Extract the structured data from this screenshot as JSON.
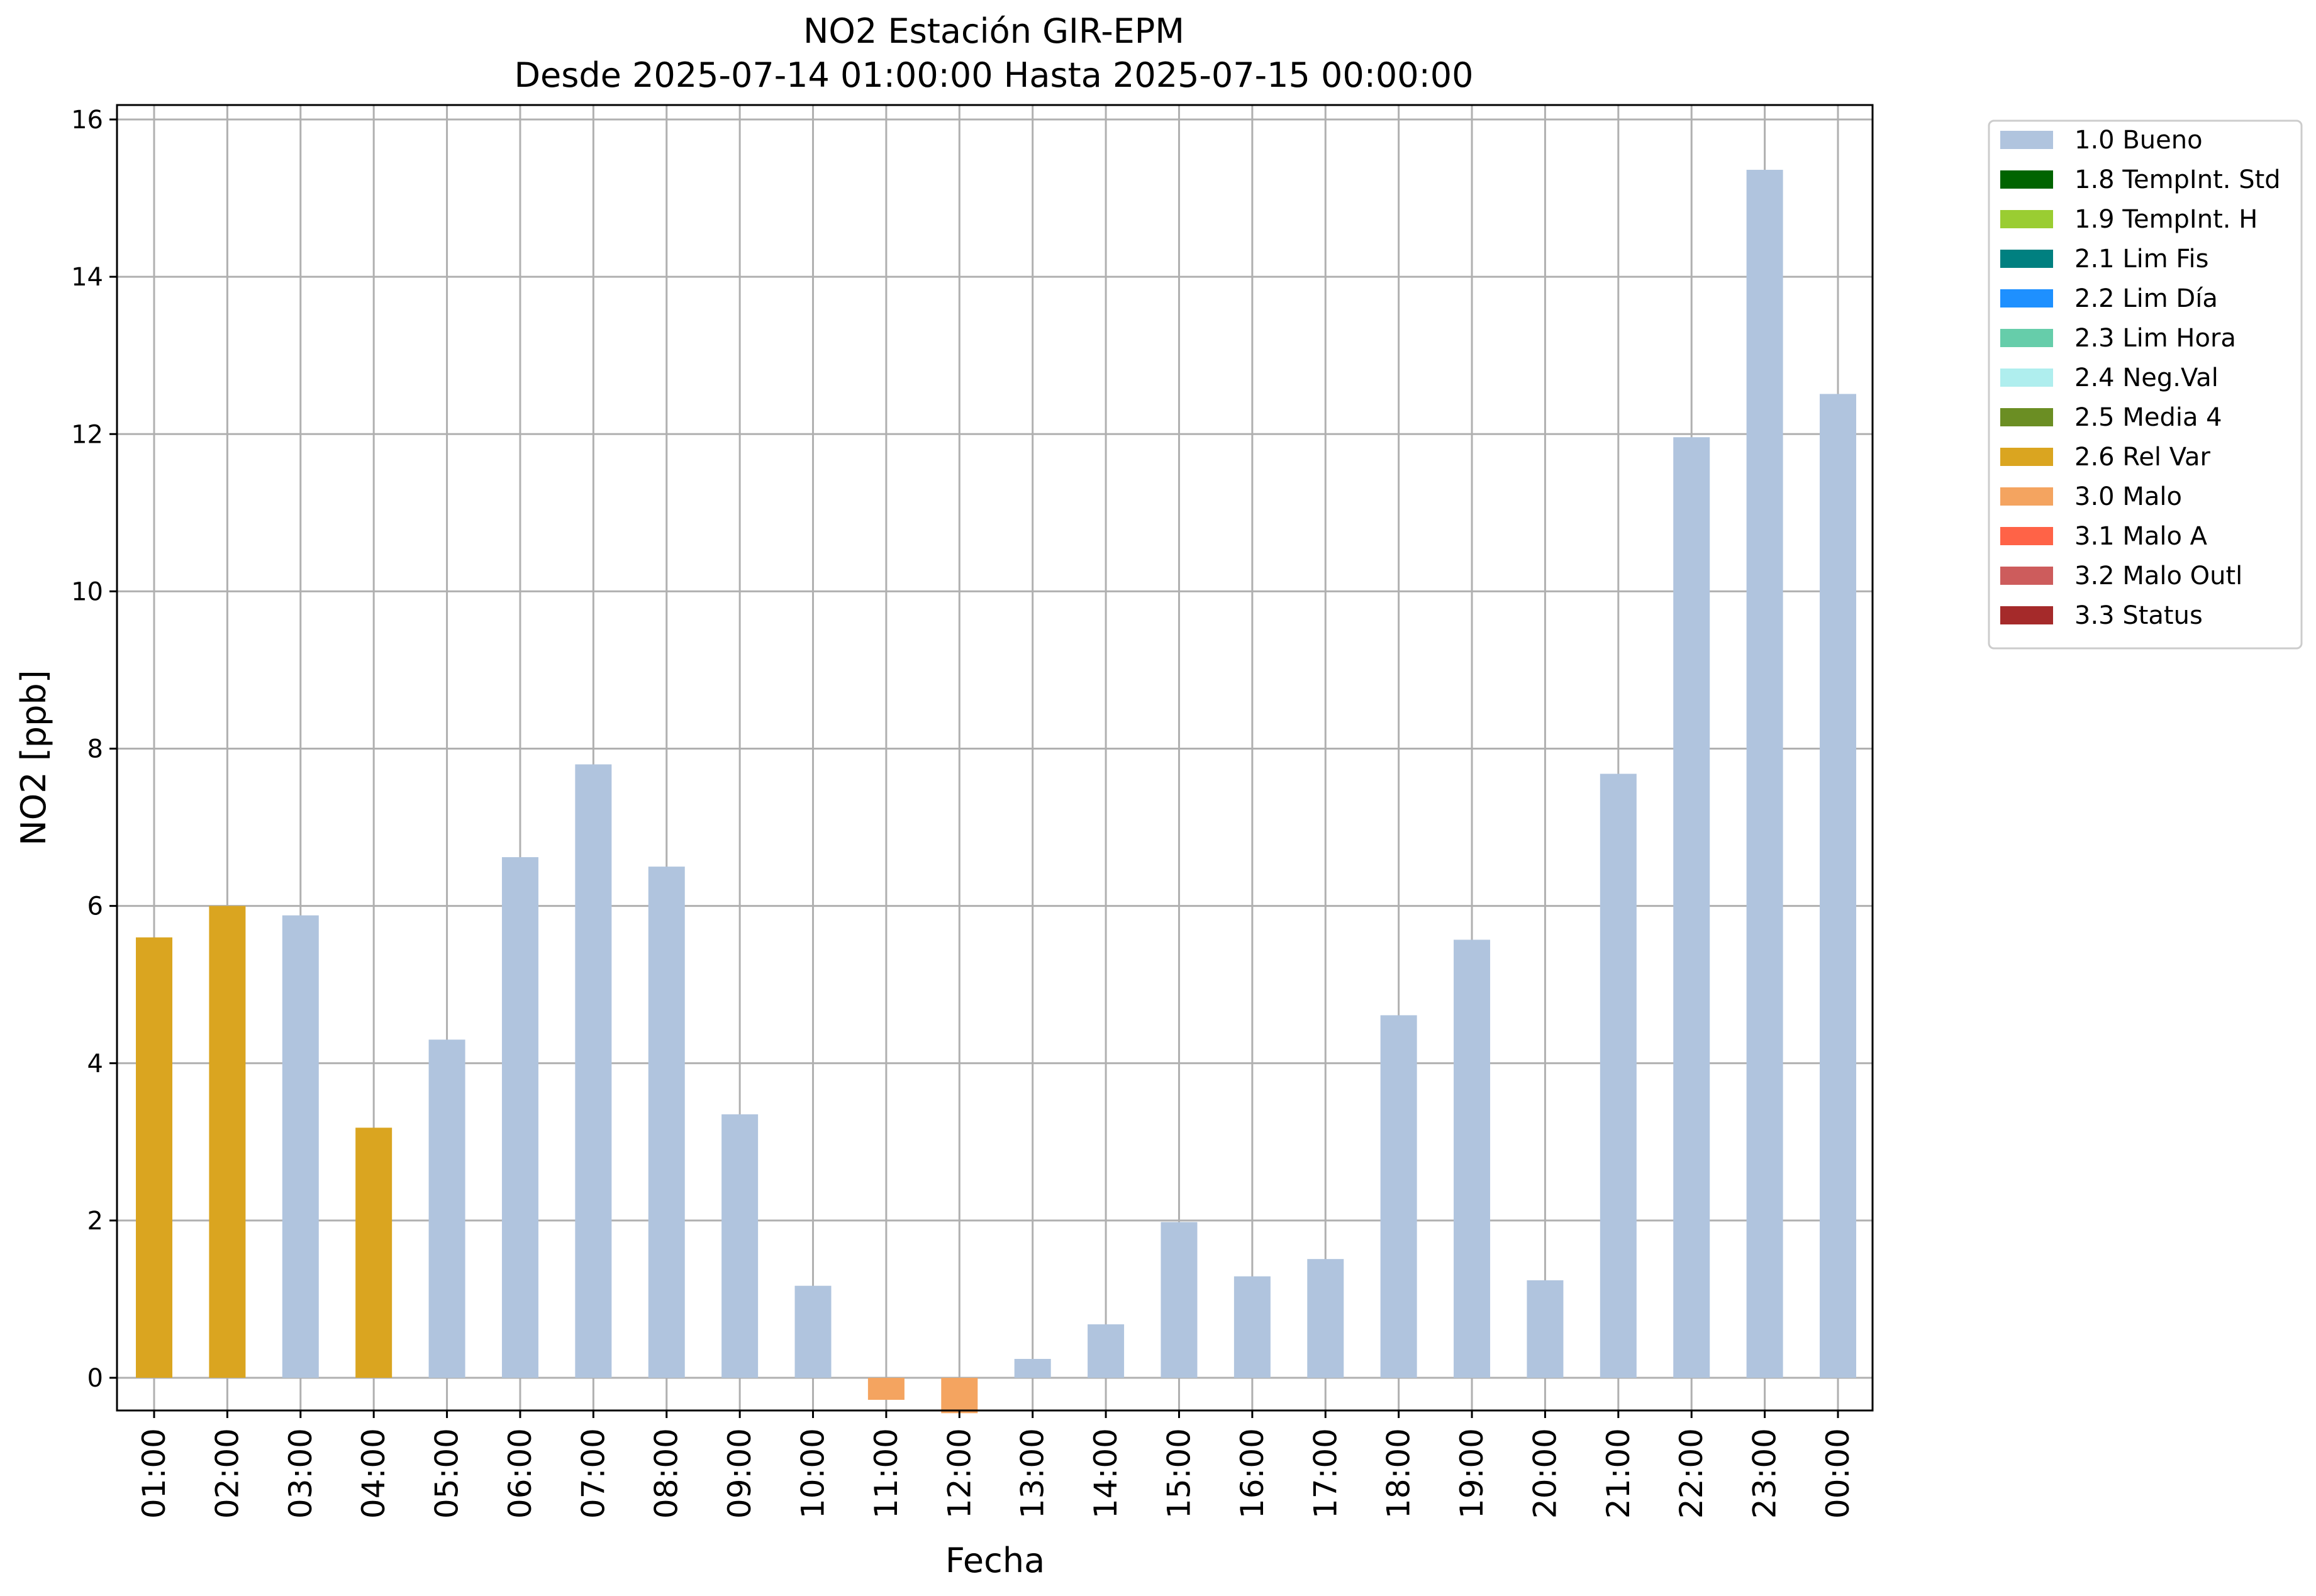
{
  "chart_data": {
    "type": "bar",
    "title": "NO2 Estación GIR-EPM",
    "subtitle": "Desde 2025-07-14 01:00:00 Hasta 2025-07-15 00:00:00",
    "xlabel": "Fecha",
    "ylabel": "NO2 [ppb]",
    "ylim": [
      -0.45,
      16.2
    ],
    "yticks": [
      0,
      2,
      4,
      6,
      8,
      10,
      12,
      14,
      16
    ],
    "grid": true,
    "legend_placement": "outside-top-right",
    "categories": [
      "01:00",
      "02:00",
      "03:00",
      "04:00",
      "05:00",
      "06:00",
      "07:00",
      "08:00",
      "09:00",
      "10:00",
      "11:00",
      "12:00",
      "13:00",
      "14:00",
      "15:00",
      "16:00",
      "17:00",
      "18:00",
      "19:00",
      "20:00",
      "21:00",
      "22:00",
      "23:00",
      "00:00"
    ],
    "values": [
      5.6,
      6.0,
      5.88,
      3.18,
      4.3,
      6.62,
      7.8,
      6.5,
      3.35,
      1.17,
      -0.28,
      -0.45,
      0.24,
      0.68,
      1.98,
      1.29,
      1.51,
      4.61,
      5.57,
      1.24,
      7.68,
      11.96,
      15.36,
      12.51
    ],
    "flags": [
      "2.6 Rel Var",
      "2.6 Rel Var",
      "1.0 Bueno",
      "2.6 Rel Var",
      "1.0 Bueno",
      "1.0 Bueno",
      "1.0 Bueno",
      "1.0 Bueno",
      "1.0 Bueno",
      "1.0 Bueno",
      "3.0 Malo",
      "3.0 Malo",
      "1.0 Bueno",
      "1.0 Bueno",
      "1.0 Bueno",
      "1.0 Bueno",
      "1.0 Bueno",
      "1.0 Bueno",
      "1.0 Bueno",
      "1.0 Bueno",
      "1.0 Bueno",
      "1.0 Bueno",
      "1.0 Bueno",
      "1.0 Bueno"
    ],
    "legend": [
      {
        "label": "1.0 Bueno",
        "color": "#b0c4de"
      },
      {
        "label": "1.8 TempInt. Std",
        "color": "#006400"
      },
      {
        "label": "1.9 TempInt. H",
        "color": "#9acd32"
      },
      {
        "label": "2.1 Lim Fis",
        "color": "#008080"
      },
      {
        "label": "2.2 Lim Día",
        "color": "#1e90ff"
      },
      {
        "label": "2.3 Lim Hora",
        "color": "#66cdaa"
      },
      {
        "label": "2.4 Neg.Val",
        "color": "#afeeee"
      },
      {
        "label": "2.5 Media 4",
        "color": "#6b8e23"
      },
      {
        "label": "2.6 Rel Var",
        "color": "#daa520"
      },
      {
        "label": "3.0 Malo",
        "color": "#f4a460"
      },
      {
        "label": "3.1 Malo A",
        "color": "#ff6347"
      },
      {
        "label": "3.2 Malo Outl",
        "color": "#cd5c5c"
      },
      {
        "label": "3.3 Status",
        "color": "#a52a2a"
      }
    ]
  }
}
